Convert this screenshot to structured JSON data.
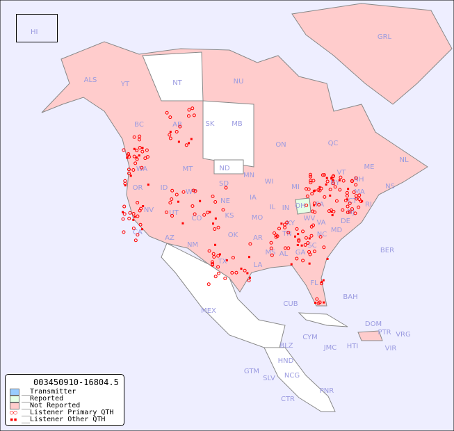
{
  "map": {
    "background": "#eeeeff",
    "colors": {
      "transmitter": "#99ccff",
      "reported": "#e5ffe5",
      "not_reported": "#ffcccc",
      "unlisted": "#ffffff",
      "marker": "#ff0000"
    },
    "inset_label": "HI",
    "region_labels": [
      "ALS",
      "YT",
      "NT",
      "NU",
      "GRL",
      "BC",
      "AB",
      "SK",
      "MB",
      "ON",
      "QC",
      "NL",
      "NS",
      "WA",
      "OR",
      "ID",
      "MT",
      "WY",
      "ND",
      "SD",
      "NE",
      "MN",
      "WI",
      "IA",
      "IL",
      "IN",
      "OH",
      "MI",
      "PA",
      "NY",
      "VT",
      "NH",
      "ME",
      "MA",
      "CT",
      "RI",
      "NJ",
      "DE",
      "MD",
      "WV",
      "VA",
      "KY",
      "TN",
      "NC",
      "SC",
      "GA",
      "AL",
      "MS",
      "LA",
      "AR",
      "MO",
      "KS",
      "OK",
      "TX",
      "NM",
      "CO",
      "UT",
      "AZ",
      "NV",
      "CA",
      "FL",
      "BER",
      "BAH",
      "CUB",
      "MEX",
      "DOM",
      "PTR",
      "VRG",
      "CYM",
      "JMC",
      "HTI",
      "VIR",
      "BLZ",
      "HND",
      "GTM",
      "SLV",
      "NCG",
      "CTR",
      "PNR"
    ]
  },
  "legend": {
    "id": "003450910-16804.5",
    "items": [
      "__Transmitter",
      "__Reported",
      "__Not Reported",
      "__Listener Primary QTH",
      "__Listener Other QTH"
    ]
  }
}
